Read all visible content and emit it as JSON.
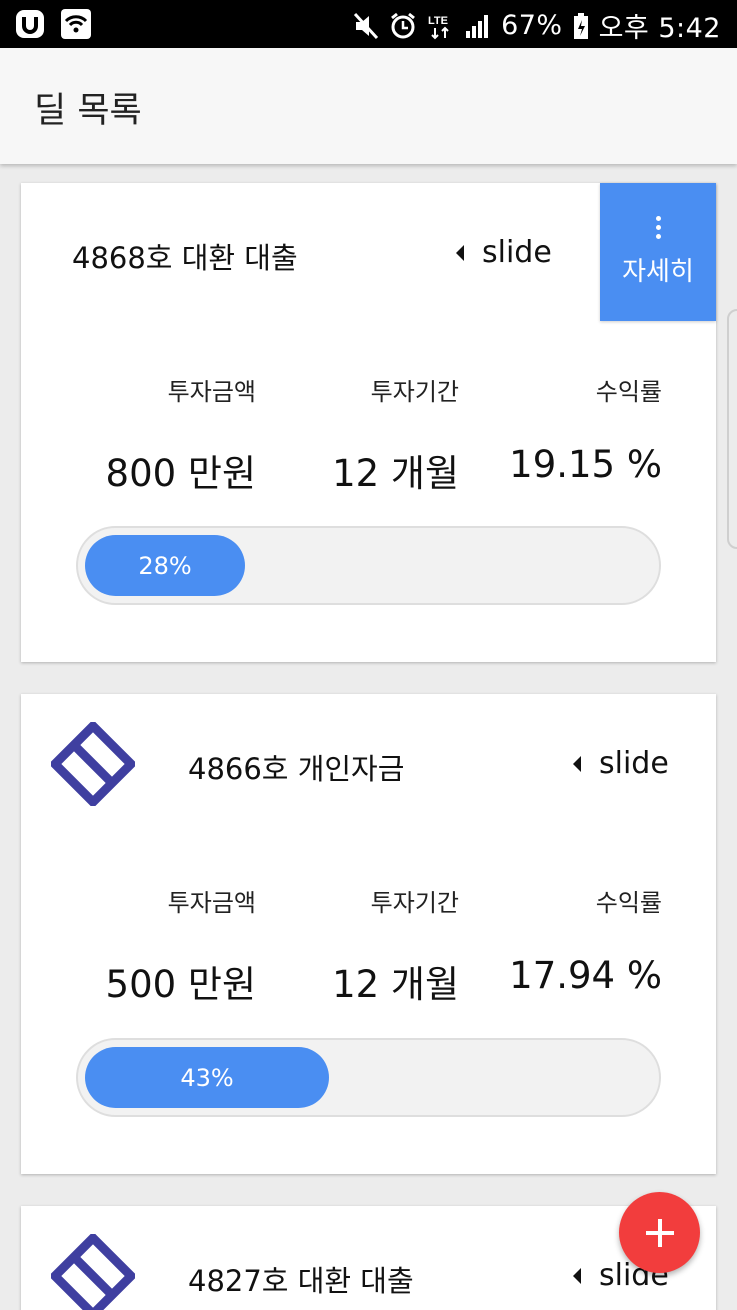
{
  "status_bar": {
    "battery": "67%",
    "time": "오후 5:42",
    "network": "LTE",
    "icons": [
      "app-u-icon",
      "wifi-icon",
      "mute-icon",
      "alarm-icon",
      "lte-icon",
      "signal-icon",
      "battery-icon"
    ]
  },
  "app_bar": {
    "title": "딜 목록"
  },
  "labels": {
    "amount": "투자금액",
    "period": "투자기간",
    "yield": "수익률",
    "slide": "slide",
    "detail": "자세히"
  },
  "colors": {
    "accent": "#4a8ef2",
    "logo": "#3f3fa0",
    "fab": "#f23d3d"
  },
  "deals": [
    {
      "title": "4868호 대환 대출",
      "amount": "800 만원",
      "period": "12 개월",
      "yield": "19.15 %",
      "progress_label": "28%",
      "progress": 0.28,
      "has_logo": false
    },
    {
      "title": "4866호 개인자금",
      "amount": "500 만원",
      "period": "12 개월",
      "yield": "17.94 %",
      "progress_label": "43%",
      "progress": 0.43,
      "has_logo": true
    },
    {
      "title": "4827호 대환 대출",
      "has_logo": true
    }
  ]
}
